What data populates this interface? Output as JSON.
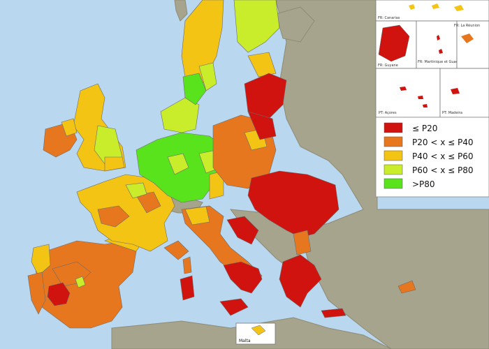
{
  "colors": {
    "sea": "#b9d7ee",
    "land_other": "#a7a48d",
    "border": "#6b6b6b",
    "le_p20": "#d0130f",
    "p20_p40": "#e7771f",
    "p40_p60": "#f3c414",
    "p60_p80": "#c9ec2b",
    "gt_p80": "#58e31d"
  },
  "legend": {
    "items": [
      {
        "label": "≤ P20",
        "color_key": "le_p20"
      },
      {
        "label": "P20 < x ≤ P40",
        "color_key": "p20_p40"
      },
      {
        "label": "P40 < x ≤ P60",
        "color_key": "p40_p60"
      },
      {
        "label": "P60 < x ≤ P80",
        "color_key": "p60_p80"
      },
      {
        "label": ">P80",
        "color_key": "gt_p80"
      }
    ]
  },
  "insets": {
    "canarias": "FR: Canarias",
    "guyane": "FR: Guyane",
    "martinique": "FR: Martinique et Guadeloupe",
    "reunion": "FR: La Réunion",
    "acores": "PT: Açores",
    "madeira": "PT: Madeira"
  },
  "malta_label": "Malta"
}
